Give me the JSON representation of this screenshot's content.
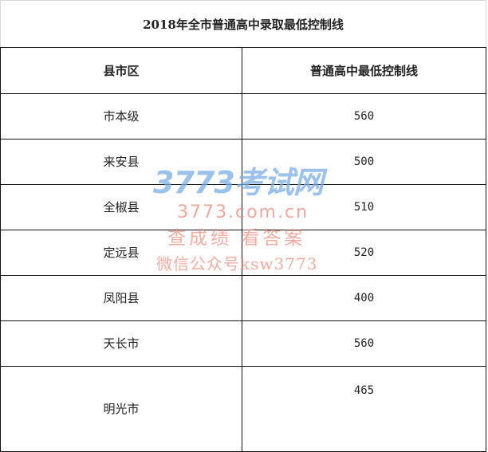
{
  "title": "2018年全市普通高中录取最低控制线",
  "headers": [
    "县市区",
    "普通高中最低控制线"
  ],
  "rows": [
    {
      "area": "市本级",
      "score": "560"
    },
    {
      "area": "来安县",
      "score": "500"
    },
    {
      "area": "全椒县",
      "score": "510"
    },
    {
      "area": "定远县",
      "score": "520"
    },
    {
      "area": "凤阳县",
      "score": "400"
    },
    {
      "area": "天长市",
      "score": "560"
    },
    {
      "area": "明光市",
      "score": "465"
    }
  ],
  "watermark": {
    "brand": "3773考试网",
    "url": "3773.com.cn",
    "slogan": "查成绩 看答案",
    "wechat": "微信公众号ksw3773",
    "colors": {
      "brand": "#7aaee6",
      "text": "#f08a7a"
    }
  }
}
